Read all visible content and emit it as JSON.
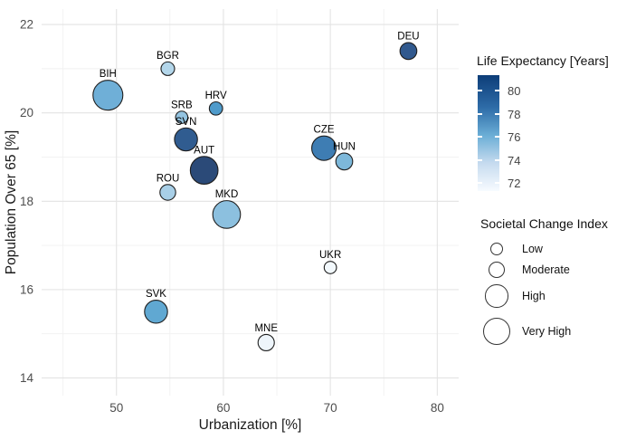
{
  "chart_data": {
    "type": "scatter",
    "title": "",
    "xlabel": "Urbanization [%]",
    "ylabel": "Population Over 65 [%]",
    "xlim": [
      43,
      82
    ],
    "ylim": [
      13.6,
      22.35
    ],
    "x_ticks": [
      50,
      60,
      70,
      80
    ],
    "x_minor_ticks": [
      45,
      55,
      65,
      75
    ],
    "y_ticks": [
      22,
      20,
      18,
      16,
      14
    ],
    "y_minor_ticks": [
      21,
      19,
      17,
      15
    ],
    "grid": "major+minor",
    "points": [
      {
        "label": "BIH",
        "x": 49.2,
        "y": 20.4,
        "societal_change_index": "Very High",
        "r": 16.5,
        "color": "#6fafd7",
        "life_expectancy_est": 77.5
      },
      {
        "label": "BGR",
        "x": 54.8,
        "y": 21.0,
        "societal_change_index": "Low",
        "r": 7.5,
        "color": "#b3d6ea",
        "life_expectancy_est": 74.5
      },
      {
        "label": "SRB",
        "x": 56.1,
        "y": 19.9,
        "societal_change_index": "Low",
        "r": 6.8,
        "color": "#94c4e1",
        "life_expectancy_est": 75.5
      },
      {
        "label": "HRV",
        "x": 59.3,
        "y": 20.1,
        "societal_change_index": "Low",
        "r": 7.3,
        "color": "#4f9bcb",
        "life_expectancy_est": 78.5
      },
      {
        "label": "SVN",
        "x": 56.5,
        "y": 19.4,
        "societal_change_index": "High",
        "r": 12.7,
        "color": "#305c90",
        "life_expectancy_est": 81.0
      },
      {
        "label": "AUT",
        "x": 58.2,
        "y": 18.7,
        "societal_change_index": "Very High",
        "r": 15.3,
        "color": "#2b4a78",
        "life_expectancy_est": 81.5
      },
      {
        "label": "ROU",
        "x": 54.8,
        "y": 18.2,
        "societal_change_index": "Moderate",
        "r": 8.7,
        "color": "#a8cfe7",
        "life_expectancy_est": 74.5
      },
      {
        "label": "MKD",
        "x": 60.3,
        "y": 17.7,
        "societal_change_index": "Very High",
        "r": 15.3,
        "color": "#8cc0df",
        "life_expectancy_est": 76.0
      },
      {
        "label": "DEU",
        "x": 77.3,
        "y": 21.4,
        "societal_change_index": "Moderate",
        "r": 9.3,
        "color": "#31598e",
        "life_expectancy_est": 81.0
      },
      {
        "label": "CZE",
        "x": 69.4,
        "y": 19.2,
        "societal_change_index": "High",
        "r": 13.5,
        "color": "#3e7db3",
        "life_expectancy_est": 79.5
      },
      {
        "label": "HUN",
        "x": 71.3,
        "y": 18.9,
        "societal_change_index": "Moderate",
        "r": 9.3,
        "color": "#7db8da",
        "life_expectancy_est": 76.5
      },
      {
        "label": "UKR",
        "x": 70.0,
        "y": 16.5,
        "societal_change_index": "Low",
        "r": 6.8,
        "color": "#f2f8fc",
        "life_expectancy_est": 71.5
      },
      {
        "label": "SVK",
        "x": 53.7,
        "y": 15.5,
        "societal_change_index": "High",
        "r": 12.7,
        "color": "#60a8d2",
        "life_expectancy_est": 77.5
      },
      {
        "label": "MNE",
        "x": 64.0,
        "y": 14.8,
        "societal_change_index": "Moderate",
        "r": 9.0,
        "color": "#eef5fb",
        "life_expectancy_est": 71.5
      }
    ],
    "color_legend": {
      "title": "Life Expectancy [Years]",
      "tick_labels": [
        "80",
        "78",
        "76",
        "74",
        "72"
      ],
      "gradient_stops": [
        "#0d3d78",
        "#2e6ca8",
        "#6baed6",
        "#c6dbef",
        "#f7fbff"
      ]
    },
    "size_legend": {
      "title": "Societal Change Index",
      "items": [
        {
          "label": "Low",
          "radius": 7
        },
        {
          "label": "Moderate",
          "radius": 9.3
        },
        {
          "label": "High",
          "radius": 12.7
        },
        {
          "label": "Very High",
          "radius": 15.3
        }
      ]
    }
  },
  "colors": {
    "grid_major": "#e3e3e3",
    "grid_minor": "#f1f1f1",
    "tick_label": "#4d4d4d",
    "axis_title": "#1a1a1a",
    "point_stroke": "#1f1f1f"
  }
}
